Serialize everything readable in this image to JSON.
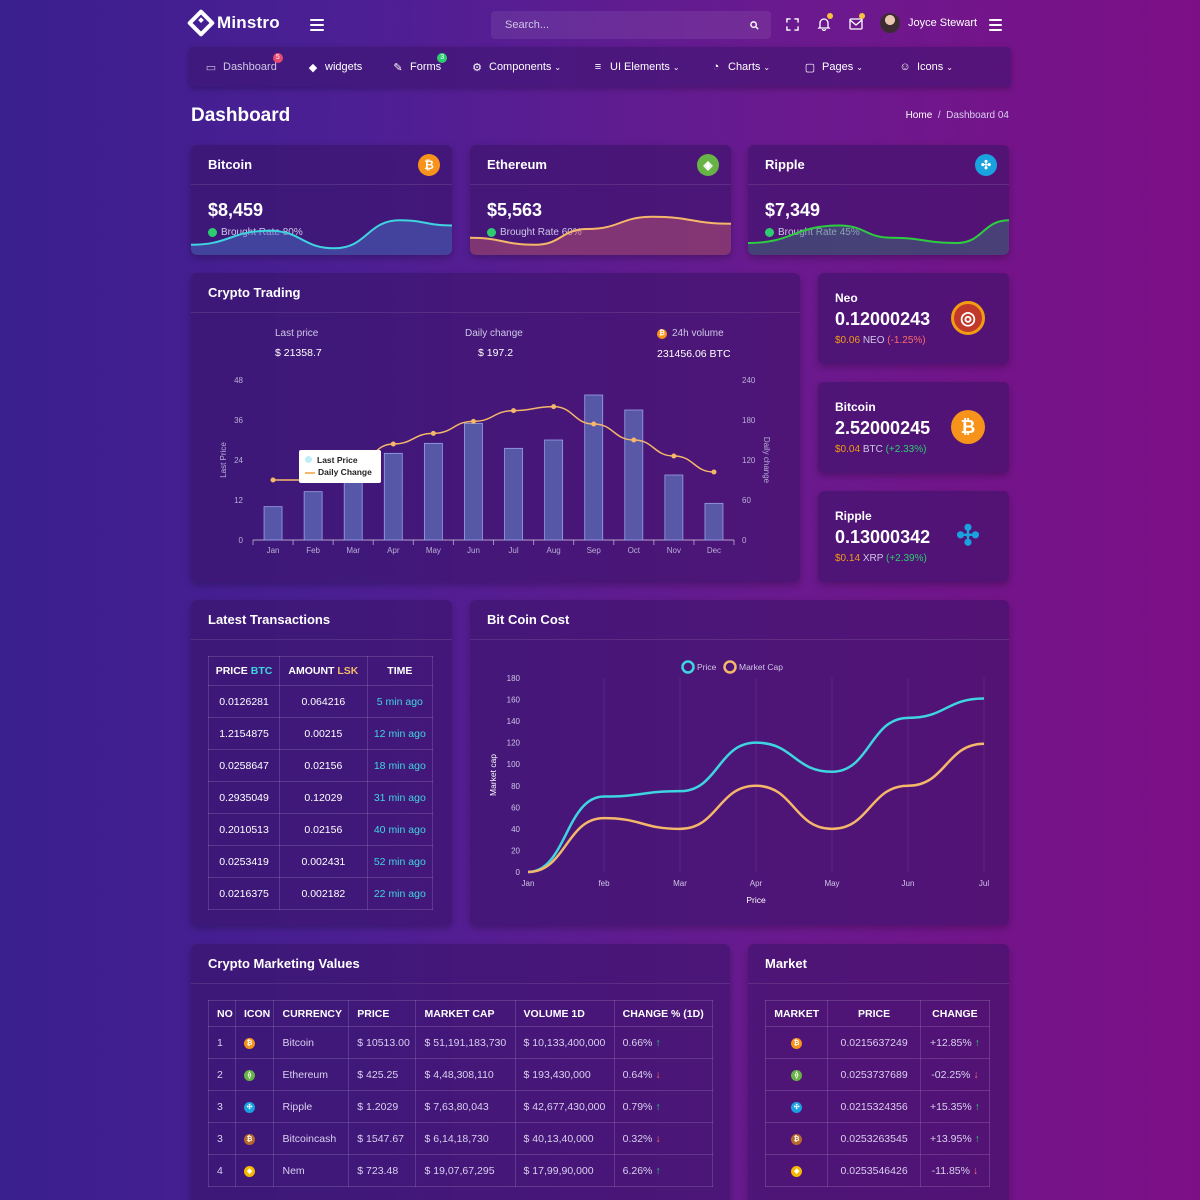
{
  "app": {
    "name": "Minstro"
  },
  "header": {
    "search_placeholder": "Search...",
    "user_name": "Joyce Stewart"
  },
  "nav": [
    {
      "label": "Dashboard",
      "icon": "laptop-icon",
      "badge": "5",
      "badge_color": "#e84a6f",
      "caret": false
    },
    {
      "label": "widgets",
      "icon": "cube-icon",
      "badge": "",
      "caret": false
    },
    {
      "label": "Forms",
      "icon": "edit-icon",
      "badge": "3",
      "badge_color": "#2ecc71",
      "caret": false
    },
    {
      "label": "Components",
      "icon": "cogs-icon",
      "badge": "",
      "caret": true
    },
    {
      "label": "UI Elements",
      "icon": "list-icon",
      "badge": "",
      "caret": true
    },
    {
      "label": "Charts",
      "icon": "pie-chart-icon",
      "badge": "",
      "caret": true
    },
    {
      "label": "Pages",
      "icon": "folder-icon",
      "badge": "",
      "caret": true
    },
    {
      "label": "Icons",
      "icon": "smile-icon",
      "badge": "",
      "caret": true
    }
  ],
  "page": {
    "title": "Dashboard",
    "breadcrumb_home": "Home",
    "breadcrumb_sep": "/",
    "breadcrumb_current": "Dashboard 04"
  },
  "coins": [
    {
      "name": "Bitcoin",
      "price": "$8,459",
      "rate": "Brought Rate 80%",
      "icon": "bitcoin-icon",
      "color": "#f7931a",
      "line": "#3fd5e0",
      "fill": "rgba(70,120,200,0.45)"
    },
    {
      "name": "Ethereum",
      "price": "$5,563",
      "rate": "Brought Rate 60%",
      "icon": "nem-icon",
      "color": "#67b346",
      "line": "#f5b86a",
      "fill": "rgba(200,90,110,0.45)"
    },
    {
      "name": "Ripple",
      "price": "$7,349",
      "rate": "Brought Rate 45%",
      "icon": "ripple-icon",
      "color": "#1aa1e0",
      "line": "#2ecc40",
      "fill": "rgba(60,120,120,0.45)"
    }
  ],
  "trading": {
    "title": "Crypto Trading",
    "last_price_label": "Last price",
    "last_price": "$ 21358.7",
    "daily_change_label": "Daily change",
    "daily_change": "$ 197.2",
    "volume_label": "24h volume",
    "volume": "231456.06 BTC",
    "legend_1": "Last Price",
    "legend_2": "Daily Change"
  },
  "tickers": [
    {
      "name": "Neo",
      "value": "0.12000243",
      "usd": "$0.06",
      "sym": "NEO",
      "chg": "(-1.25%)",
      "chg_color": "#ff6b6b",
      "icon": "neo-icon"
    },
    {
      "name": "Bitcoin",
      "value": "2.52000245",
      "usd": "$0.04",
      "sym": "BTC",
      "chg": "(+2.33%)",
      "chg_color": "#2ecc71",
      "icon": "bitcoin-icon"
    },
    {
      "name": "Ripple",
      "value": "0.13000342",
      "usd": "$0.14",
      "sym": "XRP",
      "chg": "(+2.39%)",
      "chg_color": "#2ecc71",
      "icon": "ripple-icon"
    }
  ],
  "transactions": {
    "title": "Latest Transactions",
    "col_price": "PRICE",
    "col_price_unit": "BTC",
    "col_amount": "AMOUNT",
    "col_amount_unit": "LSK",
    "col_time": "TIME",
    "rows": [
      [
        "0.0126281",
        "0.064216",
        "5 min ago"
      ],
      [
        "1.2154875",
        "0.00215",
        "12 min ago"
      ],
      [
        "0.0258647",
        "0.02156",
        "18 min ago"
      ],
      [
        "0.2935049",
        "0.12029",
        "31 min ago"
      ],
      [
        "0.2010513",
        "0.02156",
        "40 min ago"
      ],
      [
        "0.0253419",
        "0.002431",
        "52 min ago"
      ],
      [
        "0.0216375",
        "0.002182",
        "22 min ago"
      ]
    ]
  },
  "bitcoin_cost": {
    "title": "Bit Coin Cost"
  },
  "marketing": {
    "title": "Crypto Marketing Values",
    "headers": [
      "NO",
      "ICON",
      "CURRENCY",
      "PRICE",
      "MARKET CAP",
      "VOLUME 1D",
      "CHANGE % (1D)"
    ],
    "rows": [
      {
        "no": "1",
        "icon": "bitcoin-icon",
        "color": "#f7931a",
        "currency": "Bitcoin",
        "price": "$ 10513.00",
        "cap": "$ 51,191,183,730",
        "vol": "$ 10,133,400,000",
        "chg": "0.66%",
        "dir": "up"
      },
      {
        "no": "2",
        "icon": "ethereum-icon",
        "color": "#67b346",
        "currency": "Ethereum",
        "price": "$ 425.25",
        "cap": "$ 4,48,308,110",
        "vol": "$ 193,430,000",
        "chg": "0.64%",
        "dir": "down"
      },
      {
        "no": "3",
        "icon": "ripple-icon",
        "color": "#1aa1e0",
        "currency": "Ripple",
        "price": "$ 1.2029",
        "cap": "$ 7,63,80,043",
        "vol": "$ 42,677,430,000",
        "chg": "0.79%",
        "dir": "up"
      },
      {
        "no": "3",
        "icon": "bitcoincash-icon",
        "color": "#b86a2a",
        "currency": "Bitcoincash",
        "price": "$ 1547.67",
        "cap": "$ 6,14,18,730",
        "vol": "$ 40,13,40,000",
        "chg": "0.32%",
        "dir": "down"
      },
      {
        "no": "4",
        "icon": "nem-icon",
        "color": "#f5b800",
        "currency": "Nem",
        "price": "$ 723.48",
        "cap": "$ 19,07,67,295",
        "vol": "$ 17,99,90,000",
        "chg": "6.26%",
        "dir": "up"
      }
    ]
  },
  "market": {
    "title": "Market",
    "headers": [
      "MARKET",
      "PRICE",
      "CHANGE"
    ],
    "rows": [
      {
        "icon": "bitcoin-icon",
        "color": "#f7931a",
        "price": "0.0215637249",
        "chg": "+12.85%",
        "dir": "up"
      },
      {
        "icon": "ethereum-icon",
        "color": "#67b346",
        "price": "0.0253737689",
        "chg": "-02.25%",
        "dir": "down"
      },
      {
        "icon": "ripple-icon",
        "color": "#1aa1e0",
        "price": "0.0215324356",
        "chg": "+15.35%",
        "dir": "up"
      },
      {
        "icon": "bitcoincash-icon",
        "color": "#b86a2a",
        "price": "0.0253263545",
        "chg": "+13.95%",
        "dir": "up"
      },
      {
        "icon": "nem-icon",
        "color": "#f5b800",
        "price": "0.0253546426",
        "chg": "-11.85%",
        "dir": "down"
      }
    ]
  },
  "chart_data": [
    {
      "type": "bar",
      "categories": [
        "Jan",
        "Feb",
        "Mar",
        "Apr",
        "May",
        "Jun",
        "Jul",
        "Aug",
        "Sep",
        "Oct",
        "Nov",
        "Dec"
      ],
      "series": [
        {
          "name": "Last Price",
          "type": "bar",
          "values": [
            10,
            14.5,
            17.5,
            26,
            29,
            35,
            27.5,
            30,
            43.5,
            39,
            19.5,
            11
          ],
          "color": "#5b63b0"
        },
        {
          "name": "Daily Change",
          "type": "line",
          "values": [
            90,
            90,
            114,
            144,
            160,
            178,
            194,
            200,
            174,
            150,
            126,
            102
          ],
          "color": "#f5b86a"
        }
      ],
      "ylabel": "Last Price",
      "y2label": "Daily change",
      "ylim": [
        0,
        48
      ],
      "y2lim": [
        0,
        240
      ],
      "yticks": [
        0,
        12,
        24,
        36,
        48
      ],
      "y2ticks": [
        0,
        60,
        120,
        180,
        240
      ]
    },
    {
      "type": "line",
      "categories": [
        "Jan",
        "feb",
        "Mar",
        "Apr",
        "May",
        "Jun",
        "Jul"
      ],
      "series": [
        {
          "name": "Price",
          "values": [
            0,
            70,
            75,
            120,
            93,
            143,
            161
          ],
          "color": "#3fd5e0"
        },
        {
          "name": "Market Cap",
          "values": [
            0,
            50,
            40,
            80,
            40,
            80,
            119
          ],
          "color": "#f5b86a"
        }
      ],
      "xlabel": "Price",
      "ylabel": "Market cap",
      "ylim": [
        0,
        180
      ],
      "yticks": [
        0,
        20,
        40,
        60,
        80,
        100,
        120,
        140,
        160,
        180
      ]
    }
  ]
}
